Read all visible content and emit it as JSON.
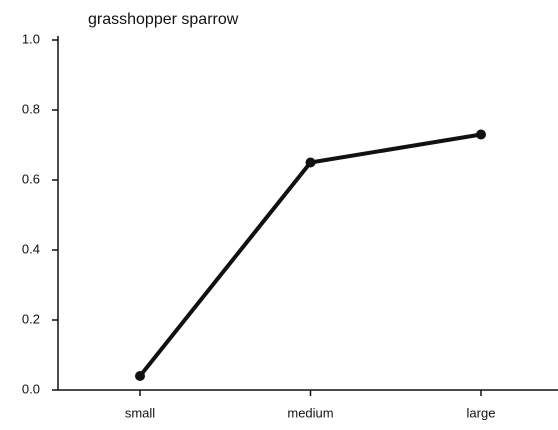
{
  "chart_data": {
    "type": "line",
    "title": "grasshopper sparrow",
    "categories": [
      "small",
      "medium",
      "large"
    ],
    "series": [
      {
        "name": "grasshopper sparrow",
        "color": "#111111",
        "values": [
          0.04,
          0.65,
          0.73
        ]
      }
    ],
    "ylim": [
      0,
      1
    ],
    "yticks": [
      {
        "value": 0,
        "label": "0.0"
      },
      0.2,
      0.4,
      0.6,
      0.8,
      {
        "value": 1,
        "label": "1.0"
      }
    ],
    "grid": false
  }
}
